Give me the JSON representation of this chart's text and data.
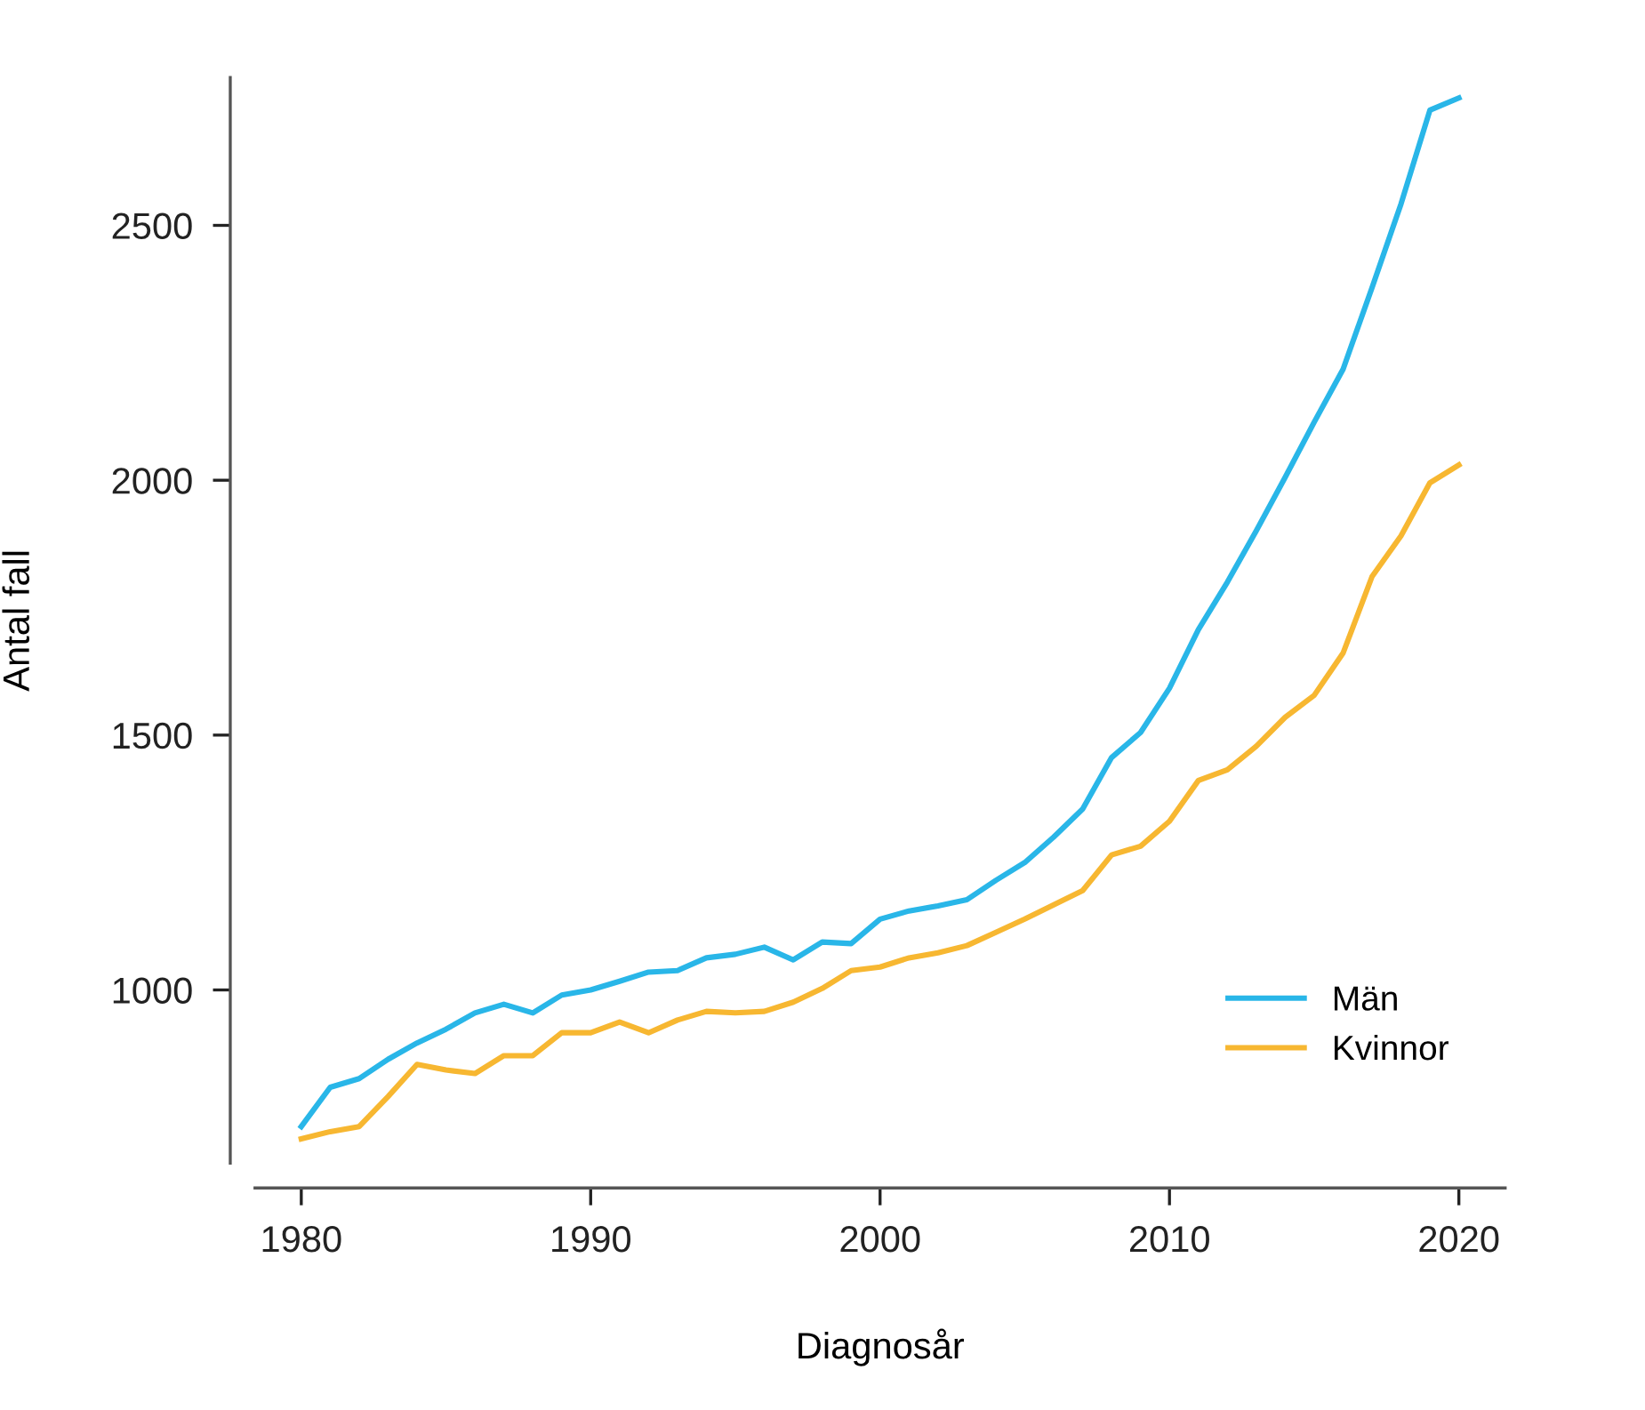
{
  "chart_data": {
    "type": "line",
    "xlabel": "Diagnosår",
    "ylabel": "Antal fall",
    "x": [
      1980,
      1981,
      1982,
      1983,
      1984,
      1985,
      1986,
      1987,
      1988,
      1989,
      1990,
      1991,
      1992,
      1993,
      1994,
      1995,
      1996,
      1997,
      1998,
      1999,
      2000,
      2001,
      2002,
      2003,
      2004,
      2005,
      2006,
      2007,
      2008,
      2009,
      2010,
      2011,
      2012,
      2013,
      2014,
      2015,
      2016,
      2017,
      2018,
      2019,
      2020
    ],
    "series": [
      {
        "name": "Män",
        "color": "#29b6e8",
        "values": [
          732,
          809,
          826,
          864,
          896,
          923,
          955,
          972,
          955,
          990,
          1000,
          1017,
          1035,
          1038,
          1063,
          1070,
          1084,
          1059,
          1094,
          1091,
          1139,
          1155,
          1165,
          1177,
          1215,
          1250,
          1300,
          1355,
          1456,
          1505,
          1592,
          1707,
          1800,
          1901,
          2006,
          2114,
          2218,
          2378,
          2542,
          2726,
          2750
        ]
      },
      {
        "name": "Kvinnor",
        "color": "#f7b731",
        "values": [
          708,
          722,
          732,
          791,
          854,
          843,
          836,
          871,
          871,
          916,
          916,
          937,
          916,
          941,
          958,
          955,
          958,
          976,
          1003,
          1038,
          1045,
          1063,
          1073,
          1087,
          1113,
          1139,
          1167,
          1195,
          1265,
          1282,
          1331,
          1411,
          1432,
          1478,
          1535,
          1578,
          1661,
          1811,
          1891,
          1995,
          2030
        ]
      }
    ],
    "xlim": [
      1978.4,
      2021.6
    ],
    "ylim": [
      660,
      2790
    ],
    "xticks": [
      1980,
      1990,
      2000,
      2010,
      2020
    ],
    "yticks": [
      1000,
      1500,
      2000,
      2500
    ],
    "grid": false,
    "legend": "bottom right",
    "marker": "none",
    "line_style": "solid"
  }
}
